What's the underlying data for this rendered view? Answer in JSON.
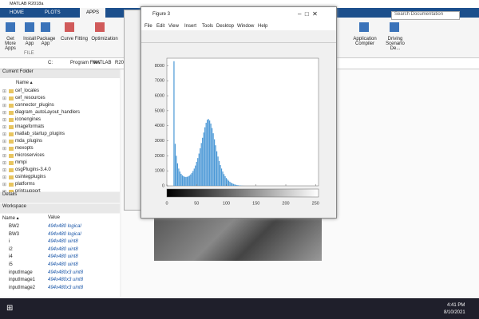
{
  "app": {
    "title": "MATLAB R2018a",
    "tabs": [
      "HOME",
      "PLOTS",
      "APPS"
    ],
    "apps": [
      "Get More Apps",
      "Install App",
      "Package App",
      "Curve Fitting",
      "Optimization"
    ],
    "apps_right": [
      "Application Compiler",
      "Driving Scenario De..."
    ],
    "section": "FILE",
    "search": "Search Documentation",
    "path": [
      "C:",
      "Program Files",
      "MATLAB",
      "R20"
    ]
  },
  "current_folder": {
    "title": "Current Folder",
    "column": "Name ▴",
    "items": [
      "cef_locales",
      "cef_resources",
      "connector_plugins",
      "diagram_autoLayout_handlers",
      "iconengines",
      "imageformats",
      "matlab_startup_plugins",
      "mda_plugins",
      "mexopts",
      "microservices",
      "mmpi",
      "osgPlugins-3.4.0",
      "osintegplugins",
      "platforms",
      "printsupport"
    ]
  },
  "details": "Details",
  "workspace": {
    "title": "Workspace",
    "columns": [
      "Name ▴",
      "Value"
    ],
    "rows": [
      [
        "BW2",
        "494x480 logical"
      ],
      [
        "BW3",
        "494x480 logical"
      ],
      [
        "i",
        "494x480 uint8"
      ],
      [
        "i2",
        "494x480 uint8"
      ],
      [
        "i4",
        "494x480 uint8"
      ],
      [
        "i5",
        "494x480 uint8"
      ],
      [
        "inputImage",
        "494x480x3 uint8"
      ],
      [
        "inputImage1",
        "494x480x3 uint8"
      ],
      [
        "inputImage2",
        "494x480x3 uint8"
      ]
    ]
  },
  "figure": {
    "title": "Figure 3",
    "menu": [
      "File",
      "Edit",
      "View",
      "Insert",
      "Tools",
      "Desktop",
      "Window",
      "Help"
    ]
  },
  "chart_data": {
    "type": "bar",
    "color": "#4a98d6",
    "x": [
      12,
      14,
      16,
      18,
      20,
      22,
      24,
      26,
      28,
      30,
      32,
      34,
      36,
      38,
      40,
      42,
      44,
      46,
      48,
      50,
      52,
      54,
      56,
      58,
      60,
      62,
      64,
      66,
      68,
      70,
      72,
      74,
      76,
      78,
      80,
      82,
      84,
      86,
      88,
      90,
      92,
      94,
      96,
      98,
      100,
      102,
      104,
      106,
      108,
      110,
      112,
      114,
      116,
      118,
      120,
      122,
      124,
      126,
      128,
      130
    ],
    "values": [
      8300,
      2800,
      2000,
      1500,
      1150,
      950,
      800,
      700,
      640,
      600,
      590,
      600,
      630,
      680,
      760,
      860,
      990,
      1150,
      1350,
      1600,
      1850,
      2150,
      2500,
      2850,
      3200,
      3550,
      3900,
      4200,
      4400,
      4450,
      4350,
      4150,
      3850,
      3500,
      3100,
      2700,
      2300,
      1950,
      1650,
      1380,
      1150,
      950,
      780,
      640,
      520,
      420,
      340,
      270,
      210,
      165,
      125,
      95,
      70,
      50,
      35,
      25,
      15,
      10,
      5,
      2
    ],
    "xlim": [
      0,
      255
    ],
    "xticks": [
      0,
      50,
      100,
      150,
      200,
      250
    ],
    "ylim": [
      0,
      8500
    ],
    "yticks": [
      0,
      1000,
      2000,
      3000,
      4000,
      5000,
      6000,
      7000,
      8000
    ],
    "colorbar": true
  },
  "taskbar": {
    "time": "4:41 PM",
    "date": "8/10/2021"
  }
}
